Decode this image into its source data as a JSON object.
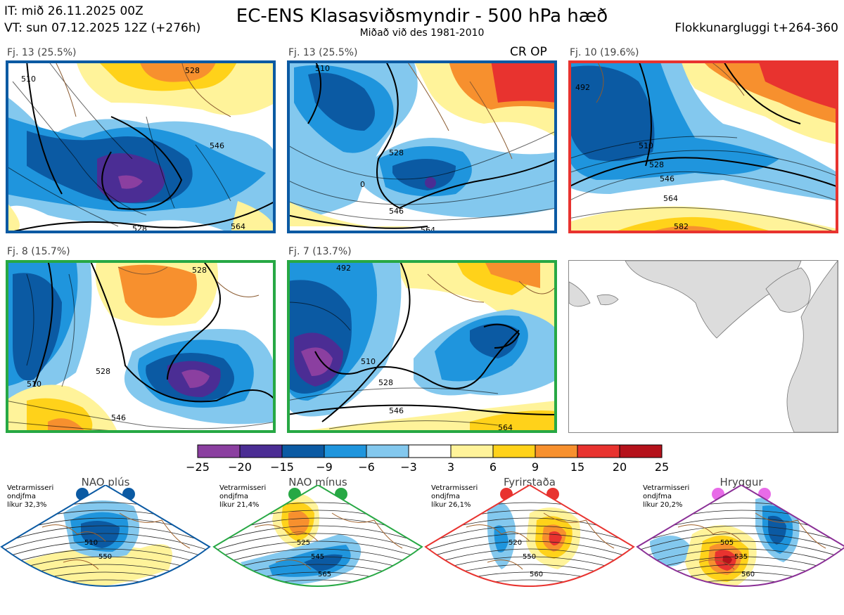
{
  "header": {
    "it": "IT: mið 26.11.2025 00Z",
    "vt": "VT: sun 07.12.2025 12Z  (+276h)",
    "title": "EC-ENS Klasasviðsmyndir - 500 hPa hæð",
    "subtitle": "Miðað við des 1981-2010",
    "window": "Flokkunargluggi t+264-360"
  },
  "panels": [
    {
      "label": "Fj. 13 (25.5%)",
      "border": "#0b5aa3",
      "contours": [
        "510",
        "528",
        "546",
        "564",
        "528"
      ],
      "op": ""
    },
    {
      "label": "Fj. 13 (25.5%)",
      "border": "#0b5aa3",
      "contours": [
        "510",
        "528",
        "546",
        "564",
        "0"
      ],
      "op": "CR OP"
    },
    {
      "label": "Fj. 10 (19.6%)",
      "border": "#e8332f",
      "contours": [
        "492",
        "510",
        "528",
        "546",
        "564",
        "582"
      ],
      "op": ""
    },
    {
      "label": "Fj. 8 (15.7%)",
      "border": "#27a844",
      "contours": [
        "528",
        "510",
        "546",
        "528"
      ],
      "op": ""
    },
    {
      "label": "Fj. 7 (13.7%)",
      "border": "#27a844",
      "contours": [
        "492",
        "510",
        "528",
        "546",
        "564"
      ],
      "op": ""
    }
  ],
  "colorbar": {
    "colors": [
      "#8b3fa0",
      "#4b2d94",
      "#0b5aa3",
      "#1f95dd",
      "#83c8ee",
      "#ffffff",
      "#fff39a",
      "#ffd21a",
      "#f7902e",
      "#e8332f",
      "#b5121b"
    ],
    "ticks": [
      "−25",
      "−20",
      "−15",
      "−9",
      "−6",
      "−3",
      "3",
      "6",
      "9",
      "15",
      "20",
      "25"
    ]
  },
  "regimes": [
    {
      "name": "NAO plús",
      "info": [
        "Vetrarmisseri",
        "ondjfma",
        "líkur 32,3%"
      ],
      "dot": "#0b5aa3",
      "border": "#0b5aa3",
      "contours": [
        "510",
        "550"
      ]
    },
    {
      "name": "NAO mínus",
      "info": [
        "Vetrarmisseri",
        "ondjfma",
        "líkur 21,4%"
      ],
      "dot": "#27a844",
      "border": "#27a844",
      "contours": [
        "525",
        "545",
        "565"
      ]
    },
    {
      "name": "Fyrirstaða",
      "info": [
        "Vetrarmisseri",
        "ondjfma",
        "líkur 26,1%"
      ],
      "dot": "#e8332f",
      "border": "#e8332f",
      "contours": [
        "520",
        "550",
        "560"
      ]
    },
    {
      "name": "Hryggur",
      "info": [
        "Vetrarmisseri",
        "ondjfma",
        "líkur 20,2%"
      ],
      "dot": "#e86be8",
      "border": "#8a2f96",
      "contours": [
        "505",
        "535",
        "560"
      ]
    }
  ]
}
